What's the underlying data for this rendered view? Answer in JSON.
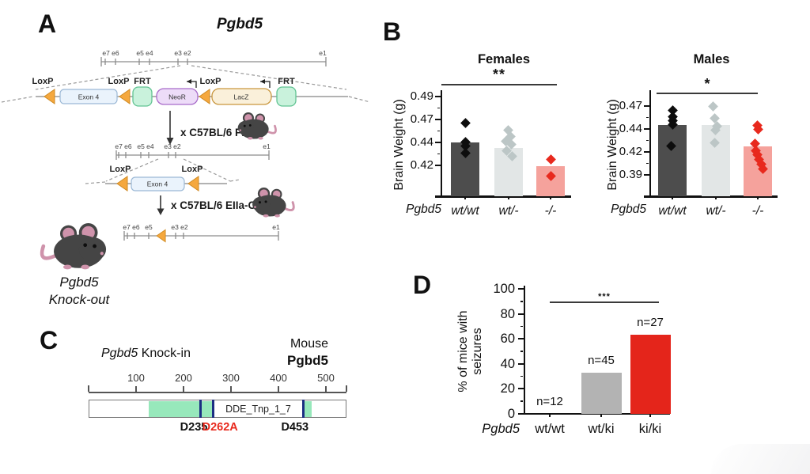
{
  "panelA": {
    "label": "A",
    "gene_title": "Pgbd5",
    "ruler1_exons": [
      "e7 e6",
      "e5 e4",
      "e3 e2",
      "e1"
    ],
    "ruler2_exons": [
      "e7 e6",
      "e5 e4",
      "e3 e2",
      "e1"
    ],
    "ruler3_exons": [
      "e7 e6",
      "e5",
      "e3 e2",
      "e1"
    ],
    "construct1": {
      "loxp": "LoxP",
      "frt": "FRT",
      "exon4": "Exon 4",
      "neor": "NeoR",
      "lacz": "LacZ"
    },
    "cross1": "x C57BL/6 FLP",
    "construct2": {
      "loxp": "LoxP",
      "exon4": "Exon 4"
    },
    "cross2": "x C57BL/6 EIIa-Cre",
    "knockout_line1": "Pgbd5",
    "knockout_line2": "Knock-out",
    "colors": {
      "loxp": "#f5a83e",
      "frt_fill": "#c9f2dc",
      "exon_fill": "#eaf3fc",
      "neor_fill": "#eddcf8",
      "lacz_fill": "#faf0da",
      "mouse_body": "#454545",
      "mouse_pink": "#cf93ab"
    }
  },
  "panelB": {
    "label": "B"
  },
  "panelC": {
    "label": "C",
    "title_italic": "Pgbd5",
    "title_rest": " Knock-in",
    "right_line1": "Mouse",
    "right_line2": "Pgbd5",
    "protein": {
      "length": 543,
      "axis_ticks": [
        100,
        200,
        300,
        400,
        500
      ],
      "domain_start": 127,
      "domain_end": 470,
      "domain_label": "DDE_Tnp_1_7",
      "domain_color": "#97e8bb",
      "mark_color": "#1c2e83",
      "marks": [
        {
          "label": "D235",
          "aa": 235,
          "color": "#111111"
        },
        {
          "label": "D262A",
          "aa": 262,
          "color": "#e8291d"
        },
        {
          "label": "D453",
          "aa": 453,
          "color": "#111111"
        }
      ]
    }
  },
  "panelD": {
    "label": "D"
  },
  "chart_data": [
    {
      "id": "females",
      "type": "bar-scatter",
      "title": "Females",
      "sig": "**",
      "ylabel": "Brain Weight (g)",
      "xlabel_prefix": "Pgbd5",
      "yticks": [
        0.49,
        0.47,
        0.44,
        0.42
      ],
      "ytick_decimals": 2,
      "categories": [
        "wt/wt",
        "wt/-",
        "-/-"
      ],
      "cat_italic": true,
      "bars": [
        0.44,
        0.435,
        0.419
      ],
      "bar_colors": [
        "#4d4d4d",
        "#e2e6e6",
        "#f5a29c"
      ],
      "point_colors": [
        "#0d0d0d",
        "#bcc6c6",
        "#e8291d"
      ],
      "points": [
        [
          0.465,
          0.441,
          0.437,
          0.431
        ],
        [
          0.456,
          0.448,
          0.442,
          0.438,
          0.433,
          0.428
        ],
        [
          0.425,
          0.411
        ]
      ],
      "jitter": [
        [
          0,
          0,
          0,
          0
        ],
        [
          -1,
          2,
          -4,
          3,
          -3,
          4
        ],
        [
          0,
          0
        ]
      ]
    },
    {
      "id": "males",
      "type": "bar-scatter",
      "title": "Males",
      "sig": "*",
      "ylabel": "Brain Weight (g)",
      "xlabel_prefix": "Pgbd5",
      "yticks": [
        0.47,
        0.44,
        0.42,
        0.39
      ],
      "ytick_decimals": 2,
      "categories": [
        "wt/wt",
        "wt/-",
        "-/-"
      ],
      "cat_italic": true,
      "bars": [
        0.445,
        0.445,
        0.425
      ],
      "bar_colors": [
        "#4d4d4d",
        "#e2e6e6",
        "#f5a29c"
      ],
      "point_colors": [
        "#0d0d0d",
        "#bcc6c6",
        "#e8291d"
      ],
      "points": [
        [
          0.464,
          0.456,
          0.451,
          0.446,
          0.425
        ],
        [
          0.47,
          0.454,
          0.444,
          0.439,
          0.428
        ],
        [
          0.445,
          0.44,
          0.427,
          0.421,
          0.416,
          0.41,
          0.404,
          0.398
        ]
      ],
      "jitter": [
        [
          0,
          0,
          0,
          0,
          -2
        ],
        [
          -4,
          -2,
          1,
          -1,
          -2
        ],
        [
          -1,
          0,
          -4,
          -3,
          -1,
          1,
          4,
          6
        ]
      ]
    },
    {
      "id": "seizures",
      "type": "bar",
      "title": "",
      "sig": "***",
      "ylabel_line1": "% of mice with",
      "ylabel_line2": "seizures",
      "xlabel_prefix": "Pgbd5",
      "yticks": [
        100,
        80,
        60,
        40,
        20,
        0
      ],
      "categories": [
        "wt/wt",
        "wt/ki",
        "ki/ki"
      ],
      "cat_italic": false,
      "values": [
        0,
        33,
        63
      ],
      "bar_colors": [
        "#b3b3b3",
        "#b3b3b3",
        "#e4251b"
      ],
      "n_labels": [
        "n=12",
        "n=45",
        "n=27"
      ]
    }
  ]
}
